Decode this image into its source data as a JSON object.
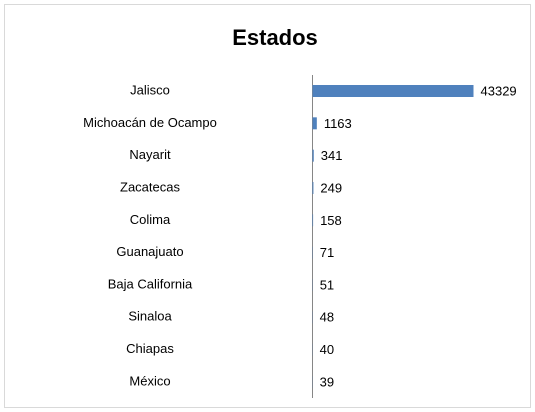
{
  "chart_data": {
    "type": "barh",
    "title": "Estados",
    "categories": [
      "Jalisco",
      "Michoacán de Ocampo",
      "Nayarit",
      "Zacatecas",
      "Colima",
      "Guanajuato",
      "Baja California",
      "Sinaloa",
      "Chiapas",
      "México"
    ],
    "values": [
      43329,
      1163,
      341,
      249,
      158,
      71,
      51,
      48,
      40,
      39
    ],
    "color": "#4f81bd"
  }
}
